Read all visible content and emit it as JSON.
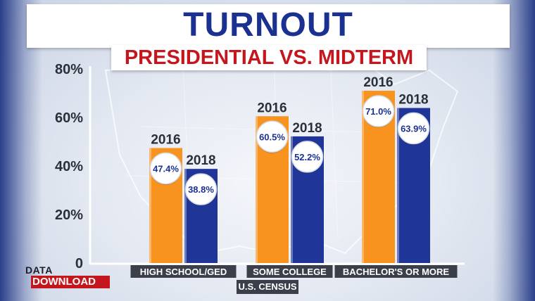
{
  "header": {
    "title": "TURNOUT",
    "subtitle": "PRESIDENTIAL VS. MIDTERM"
  },
  "branding": {
    "logo_top": "DATA",
    "logo_bottom": "DOWNLOAD"
  },
  "source": "U.S. CENSUS",
  "colors": {
    "title_blue": "#1a3192",
    "accent_red": "#c4161c",
    "bar_2016": "#f7931e",
    "bar_2018": "#1f3597",
    "label_bg": "#3a3f4a"
  },
  "chart_data": {
    "type": "bar",
    "title": "TURNOUT",
    "subtitle": "PRESIDENTIAL VS. MIDTERM",
    "categories": [
      "HIGH SCHOOL/GED",
      "SOME COLLEGE",
      "BACHELOR'S OR MORE"
    ],
    "series": [
      {
        "name": "2016",
        "values": [
          47.4,
          60.5,
          71.0
        ],
        "labels": [
          "47.4%",
          "60.5%",
          "71.0%"
        ]
      },
      {
        "name": "2018",
        "values": [
          38.8,
          52.2,
          63.9
        ],
        "labels": [
          "38.8%",
          "52.2%",
          "63.9%"
        ]
      }
    ],
    "yticks": [
      "0",
      "20%",
      "40%",
      "60%",
      "80%"
    ],
    "ylim": [
      0,
      80
    ],
    "xlabel": "",
    "ylabel": "",
    "grid": false,
    "legend": "none"
  }
}
